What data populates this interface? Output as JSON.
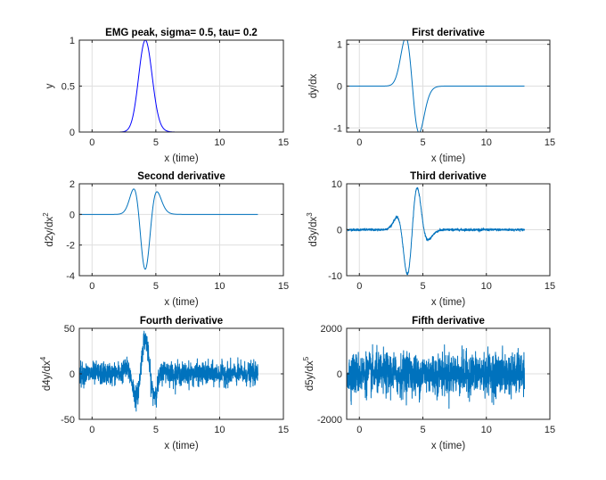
{
  "figure": {
    "background": "#ffffff",
    "axes_color": "#262626",
    "grid_color": "#dfdfdf",
    "line_color": "#0072bd",
    "peak_color": "#0000ff"
  },
  "chart_data": [
    {
      "id": "p1",
      "type": "line",
      "title": "EMG peak, sigma= 0.5, tau= 0.2",
      "xlabel": "x (time)",
      "ylabel": "y",
      "ylabel_sup": "",
      "xlim": [
        -1,
        15
      ],
      "ylim": [
        0,
        1
      ],
      "xticks": [
        0,
        5,
        10,
        15
      ],
      "yticks": [
        0,
        0.5,
        1
      ],
      "yticklabels": [
        "0",
        "0.5",
        "1"
      ],
      "grid": true,
      "series": [
        {
          "name": "y",
          "color": "#0000ff",
          "x_range": [
            -1,
            13
          ],
          "derivative": 0,
          "noise": 0
        }
      ]
    },
    {
      "id": "p2",
      "type": "line",
      "title": "First derivative",
      "xlabel": "x (time)",
      "ylabel": "dy/dx",
      "ylabel_sup": "",
      "xlim": [
        -1,
        15
      ],
      "ylim": [
        -1.1,
        1.1
      ],
      "xticks": [
        0,
        5,
        10,
        15
      ],
      "yticks": [
        -1,
        0,
        1
      ],
      "yticklabels": [
        "-1",
        "0",
        "1"
      ],
      "grid": true,
      "series": [
        {
          "name": "dy/dx",
          "color": "#0072bd",
          "x_range": [
            -1,
            13
          ],
          "derivative": 1,
          "noise": 0
        }
      ]
    },
    {
      "id": "p3",
      "type": "line",
      "title": "Second derivative",
      "xlabel": "x (time)",
      "ylabel": "d2y/dx",
      "ylabel_sup": "2",
      "xlim": [
        -1,
        15
      ],
      "ylim": [
        -4,
        2
      ],
      "xticks": [
        0,
        5,
        10,
        15
      ],
      "yticks": [
        -4,
        -2,
        0,
        2
      ],
      "yticklabels": [
        "-4",
        "-2",
        "0",
        "2"
      ],
      "grid": true,
      "series": [
        {
          "name": "d2y/dx2",
          "color": "#0072bd",
          "x_range": [
            -1,
            13
          ],
          "derivative": 2,
          "noise": 0
        }
      ]
    },
    {
      "id": "p4",
      "type": "line",
      "title": "Third derivative",
      "xlabel": "x (time)",
      "ylabel": "d3y/dx",
      "ylabel_sup": "3",
      "xlim": [
        -1,
        15
      ],
      "ylim": [
        -10,
        10
      ],
      "xticks": [
        0,
        5,
        10,
        15
      ],
      "yticks": [
        -10,
        0,
        10
      ],
      "yticklabels": [
        "-10",
        "0",
        "10"
      ],
      "grid": true,
      "series": [
        {
          "name": "d3y/dx3",
          "color": "#0072bd",
          "x_range": [
            -1,
            13
          ],
          "derivative": 3,
          "noise": 0.12
        }
      ]
    },
    {
      "id": "p5",
      "type": "line",
      "title": "Fourth derivative",
      "xlabel": "x (time)",
      "ylabel": "d4y/dx",
      "ylabel_sup": "4",
      "xlim": [
        -1,
        15
      ],
      "ylim": [
        -50,
        50
      ],
      "xticks": [
        0,
        5,
        10,
        15
      ],
      "yticks": [
        -50,
        0,
        50
      ],
      "yticklabels": [
        "-50",
        "0",
        "50"
      ],
      "grid": true,
      "series": [
        {
          "name": "d4y/dx4",
          "color": "#0072bd",
          "x_range": [
            -1,
            13
          ],
          "derivative": 4,
          "noise": 6
        }
      ]
    },
    {
      "id": "p6",
      "type": "line",
      "title": "Fifth derivative",
      "xlabel": "x (time)",
      "ylabel": "d5y/dx",
      "ylabel_sup": "5",
      "xlim": [
        -1,
        15
      ],
      "ylim": [
        -2000,
        2000
      ],
      "xticks": [
        0,
        5,
        10,
        15
      ],
      "yticks": [
        -2000,
        0,
        2000
      ],
      "yticklabels": [
        "-2000",
        "0",
        "2000"
      ],
      "grid": true,
      "series": [
        {
          "name": "d5y/dx5",
          "color": "#0072bd",
          "x_range": [
            -1,
            13
          ],
          "derivative": 5,
          "noise": 450
        }
      ]
    }
  ]
}
